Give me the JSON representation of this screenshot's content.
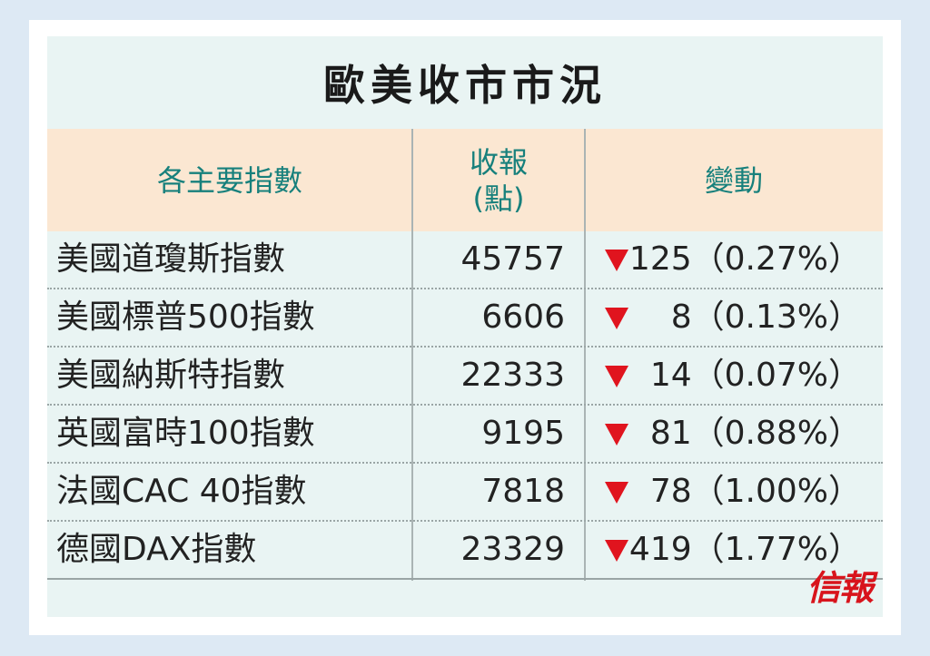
{
  "title": "歐美收市市況",
  "headers": {
    "name": "各主要指數",
    "close": "收報\n(點)",
    "change": "變動"
  },
  "rows": [
    {
      "name": "美國道瓊斯指數",
      "close": "45757",
      "direction": "down",
      "change": "125（0.27%）"
    },
    {
      "name": "美國標普500指數",
      "close": "6606",
      "direction": "down",
      "change": "8（0.13%）"
    },
    {
      "name": "美國納斯特指數",
      "close": "22333",
      "direction": "down",
      "change": "14（0.07%）"
    },
    {
      "name": "英國富時100指數",
      "close": "9195",
      "direction": "down",
      "change": "81（0.88%）"
    },
    {
      "name": "法國CAC 40指數",
      "close": "7818",
      "direction": "down",
      "change": "78（1.00%）"
    },
    {
      "name": "德國DAX指數",
      "close": "23329",
      "direction": "down",
      "change": "419（1.77%）"
    }
  ],
  "logo": "信報",
  "colors": {
    "header_text": "#17807c",
    "header_bg": "#fbe7d2",
    "panel_bg": "#e9f4f3",
    "down_arrow": "#e0141e",
    "logo": "#d8141c"
  }
}
